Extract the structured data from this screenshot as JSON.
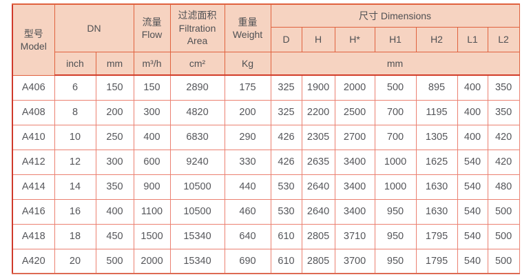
{
  "colors": {
    "header_bg": "#f6d3c1",
    "header_line": "#e0613d",
    "body_line": "#eb8070",
    "strong_line": "#d23c28",
    "text": "#55565a"
  },
  "table": {
    "header": {
      "model_zh": "型号",
      "model_en": "Model",
      "dn": "DN",
      "flow_zh": "流量",
      "flow_en": "Flow",
      "filtration_zh": "过滤面积",
      "filtration_en_line1": "Filtration",
      "filtration_en_line2": "Area",
      "weight_zh": "重量",
      "weight_en": "Weight",
      "dimensions": "尺寸 Dimensions",
      "dim_cols": [
        "D",
        "H",
        "H*",
        "H1",
        "H2",
        "L1",
        "L2"
      ],
      "unit_inch": "inch",
      "unit_mm": "mm",
      "unit_flow": "m³/h",
      "unit_area": "cm²",
      "unit_weight": "Kg",
      "unit_dim": "mm"
    },
    "columns_semantic": [
      "model",
      "dn_inch",
      "dn_mm",
      "flow_m3h",
      "filtration_area_cm2",
      "weight_kg",
      "D",
      "H",
      "H_star",
      "H1",
      "H2",
      "L1",
      "L2"
    ],
    "rows": [
      [
        "A406",
        "6",
        "150",
        "150",
        "2890",
        "175",
        "325",
        "1900",
        "2000",
        "500",
        "895",
        "400",
        "350"
      ],
      [
        "A408",
        "8",
        "200",
        "300",
        "4820",
        "200",
        "325",
        "2200",
        "2500",
        "700",
        "1195",
        "400",
        "350"
      ],
      [
        "A410",
        "10",
        "250",
        "400",
        "6830",
        "290",
        "426",
        "2305",
        "2700",
        "700",
        "1305",
        "400",
        "420"
      ],
      [
        "A412",
        "12",
        "300",
        "600",
        "9240",
        "330",
        "426",
        "2635",
        "3400",
        "1000",
        "1625",
        "540",
        "420"
      ],
      [
        "A414",
        "14",
        "350",
        "900",
        "10500",
        "440",
        "530",
        "2640",
        "3400",
        "1000",
        "1630",
        "540",
        "480"
      ],
      [
        "A416",
        "16",
        "400",
        "1100",
        "10500",
        "460",
        "530",
        "2640",
        "3400",
        "950",
        "1630",
        "540",
        "500"
      ],
      [
        "A418",
        "18",
        "450",
        "1500",
        "15340",
        "640",
        "610",
        "2805",
        "3710",
        "950",
        "1795",
        "540",
        "500"
      ],
      [
        "A420",
        "20",
        "500",
        "2000",
        "15340",
        "690",
        "610",
        "2805",
        "3700",
        "950",
        "1795",
        "540",
        "500"
      ]
    ]
  }
}
